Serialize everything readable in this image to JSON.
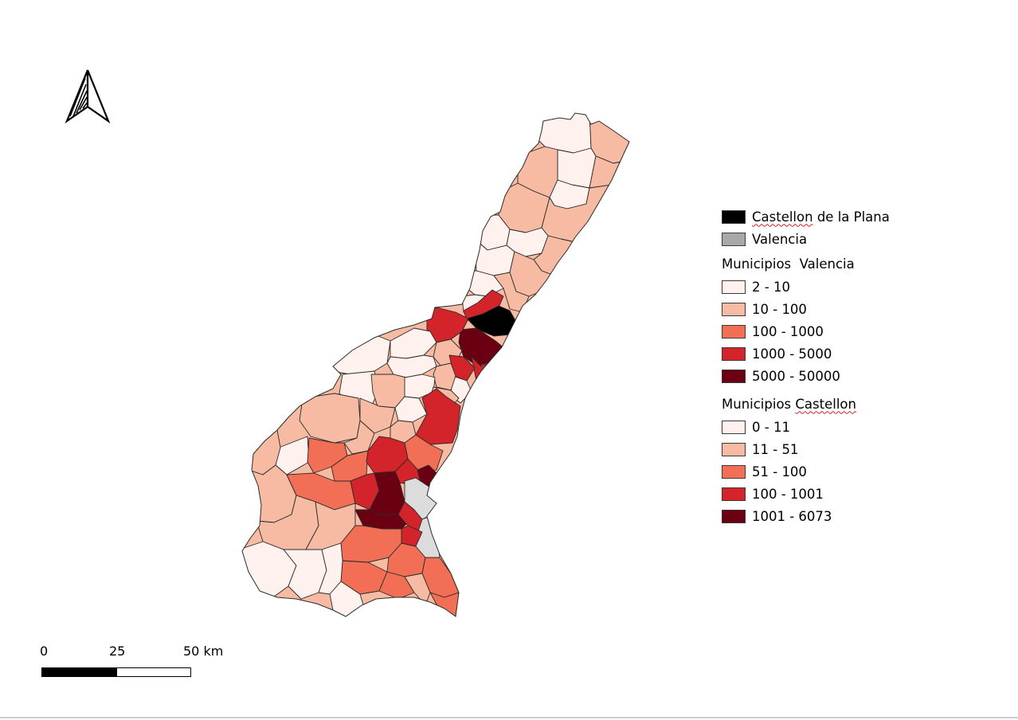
{
  "colors": {
    "castellon_city": "#000000",
    "valencia_city": "#a8a8a8",
    "valencia_fill_on_map": "#dcdcdc",
    "class_1": "#fff1ed",
    "class_2": "#f6bba2",
    "class_3": "#f26f55",
    "class_4": "#d2242a",
    "class_5": "#6b0012",
    "boundary": "#2a2a2a"
  },
  "icons": {
    "north_arrow": "north-arrow-icon"
  },
  "legend": {
    "castellon_label": "Castellon de la Plana",
    "valencia_label": "Valencia",
    "valencia_heading": "Municipios  Valencia",
    "valencia_classes": [
      "2 - 10",
      "10 - 100",
      "100 - 1000",
      "1000 - 5000",
      "5000 - 50000"
    ],
    "castellon_heading_prefix": "Municipios ",
    "castellon_heading_word": "Castellon",
    "castellon_classes": [
      "0 - 11",
      "11 - 51",
      "51 - 100",
      "100 - 1001",
      "1001 - 6073"
    ]
  },
  "scalebar": {
    "labels": [
      "0",
      "25",
      "50 km"
    ]
  }
}
